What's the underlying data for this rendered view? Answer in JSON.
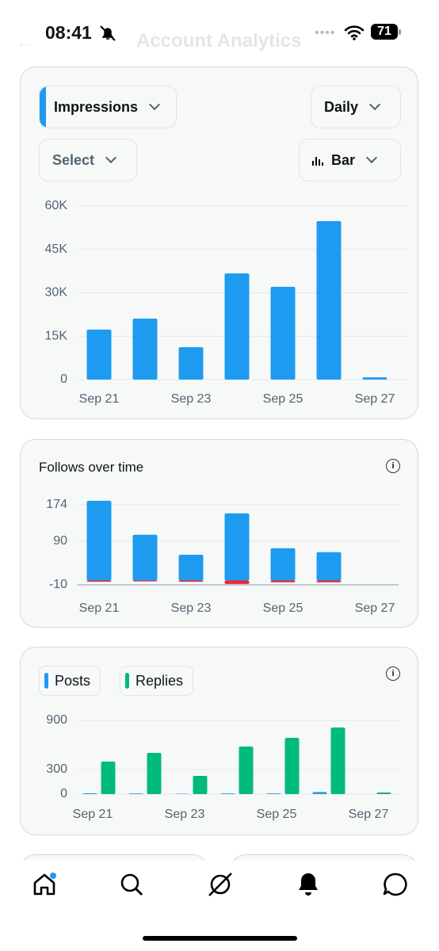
{
  "status_bar": {
    "time": "08:41",
    "battery": "71"
  },
  "header": {
    "title": "Account Analytics"
  },
  "controls": {
    "metric": "Impressions",
    "period": "Daily",
    "filter": "Select",
    "chart_style": "Bar"
  },
  "chart_data": [
    {
      "type": "bar",
      "bar_mode": "group",
      "categories": [
        "Sep 21",
        null,
        "Sep 23",
        null,
        "Sep 25",
        null,
        "Sep 27"
      ],
      "series": [
        {
          "color": "#1d9bf0",
          "values": [
            17300,
            21100,
            11200,
            36700,
            32100,
            54800,
            800
          ]
        }
      ],
      "ylim": [
        0,
        60000
      ],
      "yticks": [
        0,
        {
          "value": 15000,
          "label": "15K"
        },
        {
          "value": 30000,
          "label": "30K"
        },
        {
          "value": 45000,
          "label": "45K"
        },
        {
          "value": 60000,
          "label": "60K"
        }
      ],
      "grid": true
    },
    {
      "type": "bar",
      "title": "Follows over time",
      "bar_mode": "overlay",
      "categories": [
        "Sep 21",
        null,
        "Sep 23",
        null,
        "Sep 25",
        null,
        "Sep 27"
      ],
      "series": [
        {
          "color": "#1d9bf0",
          "values": [
            183,
            105,
            59,
            154,
            74,
            65,
            0
          ]
        },
        {
          "color": "#f4212e",
          "values": [
            -3,
            -2,
            -3,
            -8,
            -4,
            -4,
            0
          ]
        }
      ],
      "ylim": [
        -10,
        190
      ],
      "yticks": [
        -10,
        90,
        174
      ],
      "grid": true
    },
    {
      "type": "bar",
      "bar_mode": "group",
      "legend": "top-left",
      "categories": [
        "Sep 21",
        null,
        "Sep 23",
        null,
        "Sep 25",
        null,
        "Sep 27"
      ],
      "series": [
        {
          "name": "Posts",
          "color": "#1d9bf0",
          "values": [
            10,
            8,
            5,
            8,
            8,
            25,
            0
          ]
        },
        {
          "name": "Replies",
          "color": "#00ba7c",
          "values": [
            397,
            503,
            223,
            581,
            687,
            813,
            19
          ]
        }
      ],
      "ylim": [
        0,
        900
      ],
      "yticks": [
        0,
        300,
        900
      ],
      "grid": true
    }
  ]
}
